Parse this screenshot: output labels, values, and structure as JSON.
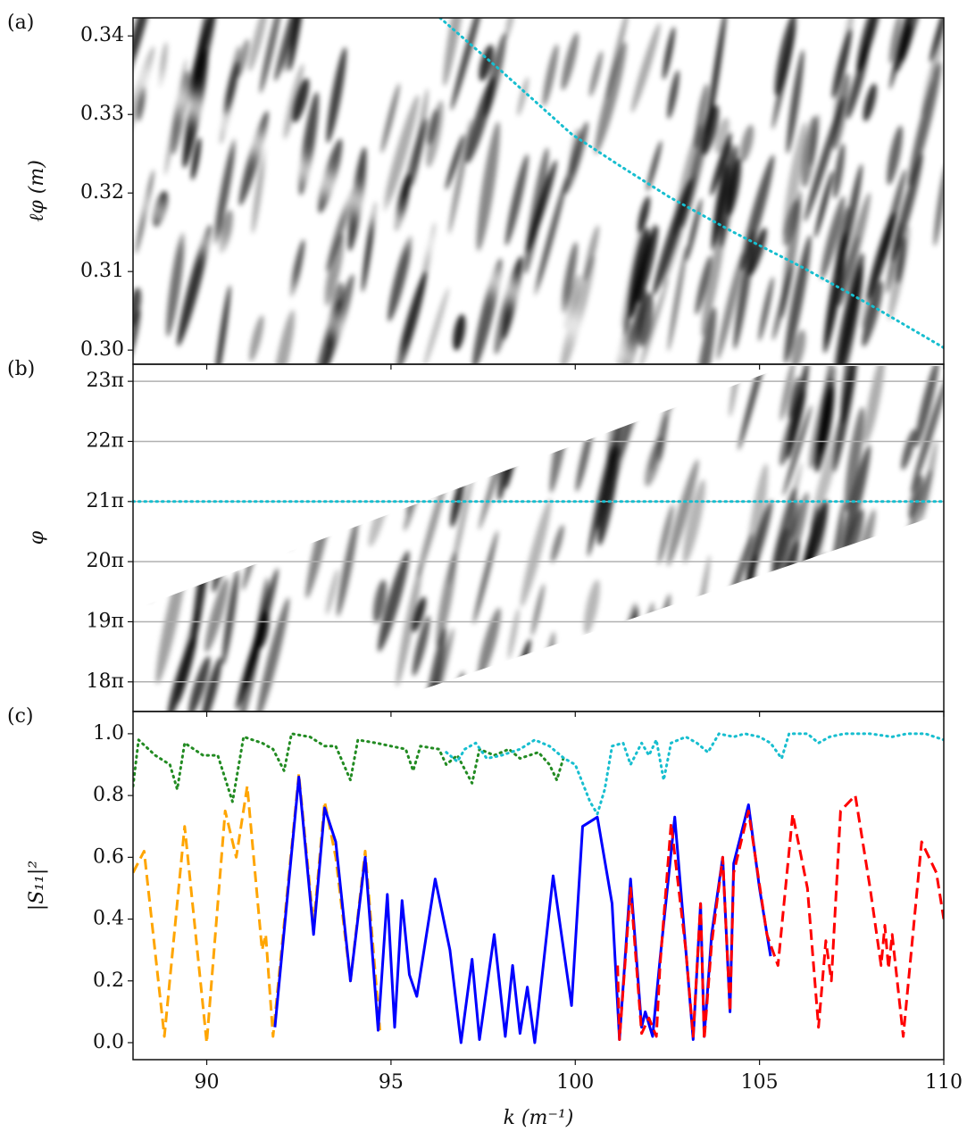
{
  "chart_data": [
    {
      "type": "heatmap",
      "panel_label": "(a)",
      "ylabel": "ℓφ (m)",
      "xlim": [
        88,
        110
      ],
      "ylim": [
        0.2982,
        0.3423
      ],
      "yticks": [
        {
          "value": 0.3,
          "label": "0.30"
        },
        {
          "value": 0.31,
          "label": "0.31"
        },
        {
          "value": 0.32,
          "label": "0.32"
        },
        {
          "value": 0.33,
          "label": "0.33"
        },
        {
          "value": 0.34,
          "label": "0.34"
        }
      ],
      "series": [
        {
          "color": "#17becf",
          "linestyle": "dotted",
          "x": [
            96.33,
            98.0,
            99.9,
            101.2,
            102.55,
            104.3,
            106.18,
            108.1,
            110.0
          ],
          "values": [
            0.3423,
            0.3355,
            0.3275,
            0.3235,
            0.3195,
            0.315,
            0.3105,
            0.3055,
            0.3003
          ]
        }
      ]
    },
    {
      "type": "heatmap",
      "panel_label": "(b)",
      "ylabel": "φ",
      "xlim": [
        88,
        110
      ],
      "ylim": [
        17.507,
        23.284
      ],
      "grid": true,
      "yticks": [
        {
          "value": 18,
          "label": "18π"
        },
        {
          "value": 19,
          "label": "19π"
        },
        {
          "value": 20,
          "label": "20π"
        },
        {
          "value": 21,
          "label": "21π"
        },
        {
          "value": 22,
          "label": "22π"
        },
        {
          "value": 23,
          "label": "23π"
        }
      ],
      "series": [
        {
          "color": "#17becf",
          "linestyle": "dotted",
          "x": [
            88,
            110
          ],
          "values": [
            21,
            21
          ]
        }
      ]
    },
    {
      "type": "line",
      "panel_label": "(c)",
      "xlabel": "k (m⁻¹)",
      "ylabel": "|S₁₁|²",
      "xlim": [
        88,
        110
      ],
      "ylim": [
        -0.055,
        1.072
      ],
      "xticks": [
        90,
        95,
        100,
        105,
        110
      ],
      "yticks": [
        {
          "value": 0.0,
          "label": "0.0"
        },
        {
          "value": 0.2,
          "label": "0.2"
        },
        {
          "value": 0.4,
          "label": "0.4"
        },
        {
          "value": 0.6,
          "label": "0.6"
        },
        {
          "value": 0.8,
          "label": "0.8"
        },
        {
          "value": 1.0,
          "label": "1.0"
        }
      ],
      "series": [
        {
          "color": "#228b22",
          "linestyle": "dotted",
          "x": [
            88,
            88.15,
            88.6,
            89.0,
            89.2,
            89.4,
            89.9,
            90.3,
            90.7,
            91.0,
            91.5,
            91.8,
            92.1,
            92.3,
            92.8,
            93.2,
            93.5,
            93.9,
            94.1,
            94.6,
            95.0,
            95.4,
            95.6,
            95.8,
            96.3,
            96.5,
            96.8,
            97.2,
            97.4,
            97.8,
            98.2,
            98.5,
            99.0,
            99.3,
            99.5,
            99.7
          ],
          "values": [
            0.83,
            0.98,
            0.93,
            0.9,
            0.82,
            0.97,
            0.93,
            0.93,
            0.78,
            0.99,
            0.97,
            0.95,
            0.88,
            1.0,
            0.99,
            0.96,
            0.96,
            0.85,
            0.98,
            0.97,
            0.96,
            0.95,
            0.88,
            0.96,
            0.95,
            0.9,
            0.93,
            0.84,
            0.95,
            0.93,
            0.95,
            0.92,
            0.94,
            0.9,
            0.85,
            0.93
          ]
        },
        {
          "color": "#17becf",
          "linestyle": "dotted",
          "x": [
            96.5,
            96.8,
            97.0,
            97.3,
            97.6,
            98.0,
            98.5,
            98.9,
            99.3,
            99.7,
            100.0,
            100.4,
            100.6,
            100.8,
            101.0,
            101.3,
            101.5,
            101.8,
            102.0,
            102.2,
            102.4,
            102.6,
            103.0,
            103.3,
            103.6,
            103.9,
            104.3,
            104.6,
            105.0,
            105.3,
            105.6,
            105.8,
            106.3,
            106.6,
            106.9,
            107.3,
            108.0,
            108.6,
            109.0,
            109.5,
            110.0
          ],
          "values": [
            0.94,
            0.91,
            0.95,
            0.97,
            0.92,
            0.93,
            0.95,
            0.98,
            0.96,
            0.92,
            0.9,
            0.78,
            0.74,
            0.82,
            0.96,
            0.97,
            0.9,
            0.97,
            0.93,
            0.98,
            0.85,
            0.97,
            0.99,
            0.97,
            0.94,
            1.0,
            0.99,
            1.0,
            0.99,
            0.97,
            0.92,
            1.0,
            1.0,
            0.97,
            0.99,
            1.0,
            1.0,
            0.99,
            1.0,
            1.0,
            0.98
          ]
        },
        {
          "color": "#ffa500",
          "linestyle": "dashed",
          "x": [
            88,
            88.3,
            88.85,
            89.4,
            90.0,
            90.5,
            90.8,
            91.1,
            91.5,
            91.6,
            91.8,
            92.5,
            92.9,
            93.2,
            93.5,
            93.9,
            94.3,
            94.7
          ],
          "values": [
            0.55,
            0.62,
            0.02,
            0.7,
            0.0,
            0.75,
            0.6,
            0.83,
            0.3,
            0.35,
            0.02,
            0.87,
            0.38,
            0.78,
            0.6,
            0.2,
            0.62,
            0.04
          ]
        },
        {
          "color": "#0000ff",
          "linestyle": "solid",
          "x": [
            91.85,
            92.5,
            92.9,
            93.2,
            93.5,
            93.9,
            94.3,
            94.65,
            94.9,
            95.1,
            95.3,
            95.5,
            95.7,
            96.2,
            96.6,
            96.9,
            97.2,
            97.4,
            97.8,
            98.1,
            98.3,
            98.5,
            98.7,
            98.9,
            99.4,
            99.9,
            100.2,
            100.6,
            101.0,
            101.2,
            101.5,
            101.8,
            101.9,
            102.1,
            102.3,
            102.7,
            103.0,
            103.2,
            103.4,
            103.5,
            103.7,
            104.0,
            104.2,
            104.3,
            104.7,
            105.0,
            105.3
          ],
          "values": [
            0.05,
            0.86,
            0.35,
            0.76,
            0.65,
            0.2,
            0.6,
            0.04,
            0.48,
            0.05,
            0.46,
            0.22,
            0.15,
            0.53,
            0.3,
            0.0,
            0.27,
            0.01,
            0.35,
            0.02,
            0.25,
            0.03,
            0.18,
            0.0,
            0.54,
            0.12,
            0.7,
            0.73,
            0.45,
            0.01,
            0.53,
            0.05,
            0.1,
            0.02,
            0.27,
            0.73,
            0.3,
            0.01,
            0.45,
            0.02,
            0.35,
            0.6,
            0.1,
            0.58,
            0.77,
            0.5,
            0.28
          ]
        },
        {
          "color": "#ff0000",
          "linestyle": "dashed",
          "x": [
            101.15,
            101.2,
            101.5,
            101.8,
            102.0,
            102.2,
            102.3,
            102.6,
            103.0,
            103.2,
            103.4,
            103.5,
            103.7,
            104.0,
            104.2,
            104.3,
            104.7,
            105.2,
            105.5,
            105.9,
            106.3,
            106.6,
            106.8,
            106.95,
            107.2,
            107.6,
            108.0,
            108.3,
            108.4,
            108.5,
            108.6,
            108.9,
            109.4,
            109.8,
            110.0
          ],
          "values": [
            0.25,
            0.01,
            0.5,
            0.03,
            0.08,
            0.02,
            0.25,
            0.71,
            0.3,
            0.02,
            0.45,
            0.01,
            0.32,
            0.6,
            0.1,
            0.55,
            0.75,
            0.35,
            0.25,
            0.74,
            0.5,
            0.05,
            0.33,
            0.2,
            0.75,
            0.8,
            0.5,
            0.25,
            0.38,
            0.24,
            0.35,
            0.02,
            0.65,
            0.55,
            0.4
          ]
        }
      ]
    }
  ]
}
